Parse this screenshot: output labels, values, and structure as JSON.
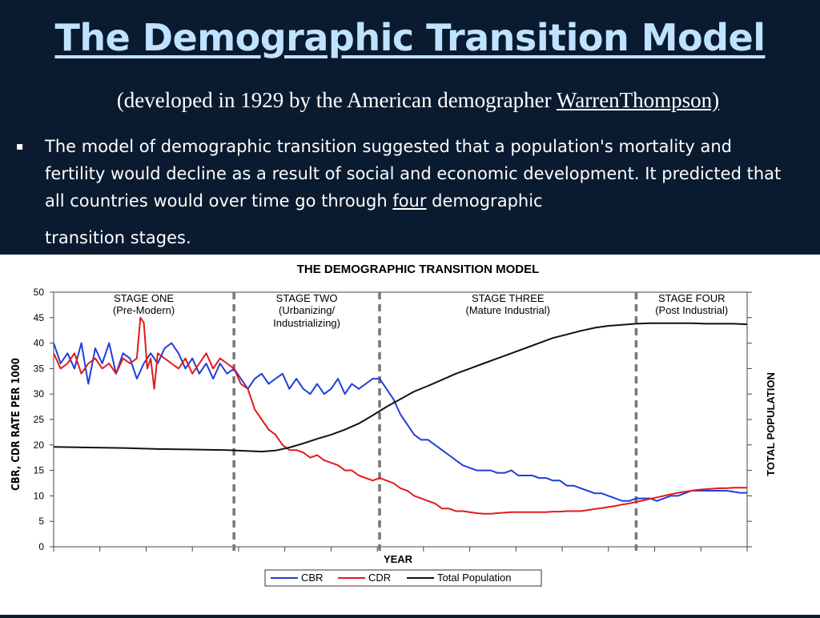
{
  "slide": {
    "title": "The Demographic Transition Model",
    "subtitle_prefix": "(developed in 1929 by the American demographer ",
    "subtitle_link": "WarrenThompson)",
    "bullet_mark": "▪",
    "bullet_part1": "The model of demographic transition suggested that a population's mortality and fertility would decline as a result of social and economic development. It predicted that all countries would over time go through ",
    "bullet_underlined": "four",
    "bullet_part2": " demographic",
    "bullet_last_line": "transition stages."
  },
  "chart_data": {
    "type": "line",
    "title": "THE DEMOGRAPHIC TRANSITION MODEL",
    "xlabel": "YEAR",
    "ylabel": "CBR, CDR RATE PER 1000",
    "y2label": "TOTAL POPULATION",
    "ylim": [
      0,
      50
    ],
    "yticks": [
      0,
      5,
      10,
      15,
      20,
      25,
      30,
      35,
      40,
      45,
      50
    ],
    "xlim": [
      0,
      100
    ],
    "stage_boundaries": [
      26,
      47,
      84
    ],
    "stages": [
      {
        "name": "STAGE ONE",
        "desc": "(Pre-Modern)",
        "desc2": ""
      },
      {
        "name": "STAGE TWO",
        "desc": "(Urbanizing/",
        "desc2": "Industrializing)"
      },
      {
        "name": "STAGE THREE",
        "desc": "(Mature Industrial)",
        "desc2": ""
      },
      {
        "name": "STAGE FOUR",
        "desc": "(Post Industrial)",
        "desc2": ""
      }
    ],
    "legend_placement": "bottom-center",
    "series": [
      {
        "name": "CBR",
        "color": "#1f3fd6",
        "points": [
          [
            0,
            40
          ],
          [
            1,
            36
          ],
          [
            2,
            38
          ],
          [
            3,
            35
          ],
          [
            4,
            40
          ],
          [
            5,
            32
          ],
          [
            6,
            39
          ],
          [
            7,
            36
          ],
          [
            8,
            40
          ],
          [
            9,
            34
          ],
          [
            10,
            38
          ],
          [
            11,
            37
          ],
          [
            12,
            33
          ],
          [
            13,
            36
          ],
          [
            14,
            38
          ],
          [
            15,
            36
          ],
          [
            16,
            39
          ],
          [
            17,
            40
          ],
          [
            18,
            38
          ],
          [
            19,
            35
          ],
          [
            20,
            37
          ],
          [
            21,
            34
          ],
          [
            22,
            36
          ],
          [
            23,
            33
          ],
          [
            24,
            36
          ],
          [
            25,
            34
          ],
          [
            26,
            35
          ],
          [
            27,
            33
          ],
          [
            28,
            31
          ],
          [
            29,
            33
          ],
          [
            30,
            34
          ],
          [
            31,
            32
          ],
          [
            32,
            33
          ],
          [
            33,
            34
          ],
          [
            34,
            31
          ],
          [
            35,
            33
          ],
          [
            36,
            31
          ],
          [
            37,
            30
          ],
          [
            38,
            32
          ],
          [
            39,
            30
          ],
          [
            40,
            31
          ],
          [
            41,
            33
          ],
          [
            42,
            30
          ],
          [
            43,
            32
          ],
          [
            44,
            31
          ],
          [
            45,
            32
          ],
          [
            46,
            33
          ],
          [
            47,
            33
          ],
          [
            48,
            31
          ],
          [
            49,
            29
          ],
          [
            50,
            26
          ],
          [
            51,
            24
          ],
          [
            52,
            22
          ],
          [
            53,
            21
          ],
          [
            54,
            21
          ],
          [
            55,
            20
          ],
          [
            56,
            19
          ],
          [
            57,
            18
          ],
          [
            58,
            17
          ],
          [
            59,
            16
          ],
          [
            60,
            15.5
          ],
          [
            61,
            15
          ],
          [
            62,
            15
          ],
          [
            63,
            15
          ],
          [
            64,
            14.5
          ],
          [
            65,
            14.5
          ],
          [
            66,
            15
          ],
          [
            67,
            14
          ],
          [
            68,
            14
          ],
          [
            69,
            14
          ],
          [
            70,
            13.5
          ],
          [
            71,
            13.5
          ],
          [
            72,
            13
          ],
          [
            73,
            13
          ],
          [
            74,
            12
          ],
          [
            75,
            12
          ],
          [
            76,
            11.5
          ],
          [
            77,
            11
          ],
          [
            78,
            10.5
          ],
          [
            79,
            10.5
          ],
          [
            80,
            10
          ],
          [
            81,
            9.5
          ],
          [
            82,
            9
          ],
          [
            83,
            9
          ],
          [
            84,
            9.5
          ],
          [
            85,
            9.5
          ],
          [
            86,
            9.5
          ],
          [
            87,
            9
          ],
          [
            88,
            9.5
          ],
          [
            89,
            10
          ],
          [
            90,
            10
          ],
          [
            91,
            10.5
          ],
          [
            92,
            11
          ],
          [
            93,
            11
          ],
          [
            94,
            11
          ],
          [
            95,
            11
          ],
          [
            96,
            11
          ],
          [
            97,
            11
          ],
          [
            98,
            10.8
          ],
          [
            99,
            10.6
          ],
          [
            100,
            10.6
          ]
        ]
      },
      {
        "name": "CDR",
        "color": "#e31a1a",
        "points": [
          [
            0,
            38
          ],
          [
            1,
            35
          ],
          [
            2,
            36
          ],
          [
            3,
            38
          ],
          [
            4,
            34
          ],
          [
            5,
            36
          ],
          [
            6,
            37
          ],
          [
            7,
            35
          ],
          [
            8,
            36
          ],
          [
            9,
            34
          ],
          [
            10,
            37
          ],
          [
            11,
            36
          ],
          [
            12,
            37
          ],
          [
            12.5,
            45
          ],
          [
            13,
            44
          ],
          [
            13.5,
            35
          ],
          [
            14,
            37
          ],
          [
            14.5,
            31
          ],
          [
            15,
            38
          ],
          [
            16,
            37
          ],
          [
            17,
            36
          ],
          [
            18,
            35
          ],
          [
            19,
            37
          ],
          [
            20,
            34
          ],
          [
            21,
            36
          ],
          [
            22,
            38
          ],
          [
            23,
            35
          ],
          [
            24,
            37
          ],
          [
            25,
            36
          ],
          [
            26,
            35
          ],
          [
            27,
            32
          ],
          [
            28,
            31
          ],
          [
            29,
            27
          ],
          [
            30,
            25
          ],
          [
            31,
            23
          ],
          [
            32,
            22
          ],
          [
            33,
            20
          ],
          [
            34,
            19
          ],
          [
            35,
            19
          ],
          [
            36,
            18.5
          ],
          [
            37,
            17.5
          ],
          [
            38,
            18
          ],
          [
            39,
            17
          ],
          [
            40,
            16.5
          ],
          [
            41,
            16
          ],
          [
            42,
            15
          ],
          [
            43,
            15
          ],
          [
            44,
            14
          ],
          [
            45,
            13.5
          ],
          [
            46,
            13
          ],
          [
            47,
            13.5
          ],
          [
            48,
            13
          ],
          [
            49,
            12.5
          ],
          [
            50,
            11.5
          ],
          [
            51,
            11
          ],
          [
            52,
            10
          ],
          [
            53,
            9.5
          ],
          [
            54,
            9
          ],
          [
            55,
            8.5
          ],
          [
            56,
            7.5
          ],
          [
            57,
            7.5
          ],
          [
            58,
            7
          ],
          [
            59,
            7
          ],
          [
            60,
            6.8
          ],
          [
            61,
            6.6
          ],
          [
            62,
            6.5
          ],
          [
            63,
            6.5
          ],
          [
            64,
            6.6
          ],
          [
            65,
            6.7
          ],
          [
            66,
            6.8
          ],
          [
            67,
            6.8
          ],
          [
            68,
            6.8
          ],
          [
            69,
            6.8
          ],
          [
            70,
            6.8
          ],
          [
            71,
            6.8
          ],
          [
            72,
            6.9
          ],
          [
            73,
            6.9
          ],
          [
            74,
            7
          ],
          [
            75,
            7
          ],
          [
            76,
            7
          ],
          [
            77,
            7.2
          ],
          [
            78,
            7.4
          ],
          [
            79,
            7.6
          ],
          [
            80,
            7.8
          ],
          [
            81,
            8
          ],
          [
            82,
            8.3
          ],
          [
            83,
            8.5
          ],
          [
            84,
            8.8
          ],
          [
            85,
            9.1
          ],
          [
            86,
            9.4
          ],
          [
            87,
            9.7
          ],
          [
            88,
            10
          ],
          [
            89,
            10.3
          ],
          [
            90,
            10.6
          ],
          [
            91,
            10.8
          ],
          [
            92,
            11
          ],
          [
            93,
            11.2
          ],
          [
            94,
            11.3
          ],
          [
            95,
            11.4
          ],
          [
            96,
            11.5
          ],
          [
            97,
            11.5
          ],
          [
            98,
            11.6
          ],
          [
            99,
            11.6
          ],
          [
            100,
            11.6
          ]
        ]
      },
      {
        "name": "Total Population",
        "color": "#111111",
        "points": [
          [
            0,
            19.6
          ],
          [
            5,
            19.5
          ],
          [
            10,
            19.4
          ],
          [
            15,
            19.2
          ],
          [
            20,
            19.1
          ],
          [
            25,
            19
          ],
          [
            28,
            18.8
          ],
          [
            30,
            18.7
          ],
          [
            32,
            18.9
          ],
          [
            34,
            19.5
          ],
          [
            36,
            20.3
          ],
          [
            38,
            21.2
          ],
          [
            40,
            22
          ],
          [
            42,
            23
          ],
          [
            44,
            24.2
          ],
          [
            46,
            25.8
          ],
          [
            48,
            27.5
          ],
          [
            50,
            29
          ],
          [
            52,
            30.5
          ],
          [
            54,
            31.6
          ],
          [
            56,
            32.8
          ],
          [
            58,
            34
          ],
          [
            60,
            35
          ],
          [
            62,
            36
          ],
          [
            64,
            37
          ],
          [
            66,
            38
          ],
          [
            68,
            39
          ],
          [
            70,
            40
          ],
          [
            72,
            41
          ],
          [
            74,
            41.7
          ],
          [
            76,
            42.4
          ],
          [
            78,
            43
          ],
          [
            80,
            43.4
          ],
          [
            82,
            43.6
          ],
          [
            84,
            43.8
          ],
          [
            86,
            43.9
          ],
          [
            88,
            43.9
          ],
          [
            90,
            43.9
          ],
          [
            92,
            43.9
          ],
          [
            94,
            43.8
          ],
          [
            96,
            43.8
          ],
          [
            98,
            43.8
          ],
          [
            100,
            43.7
          ]
        ]
      }
    ]
  }
}
